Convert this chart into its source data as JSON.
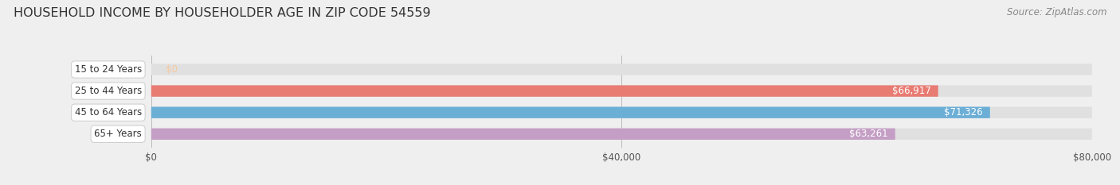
{
  "title": "HOUSEHOLD INCOME BY HOUSEHOLDER AGE IN ZIP CODE 54559",
  "source": "Source: ZipAtlas.com",
  "categories": [
    "15 to 24 Years",
    "25 to 44 Years",
    "45 to 64 Years",
    "65+ Years"
  ],
  "values": [
    0,
    66917,
    71326,
    63261
  ],
  "bar_colors": [
    "#f5c9a0",
    "#e87b72",
    "#6baed6",
    "#c49ec4"
  ],
  "label_colors": [
    "#c8864a",
    "#ffffff",
    "#ffffff",
    "#ffffff"
  ],
  "bg_color": "#efefef",
  "bar_bg_color": "#e0e0e0",
  "xlim": [
    0,
    80000
  ],
  "xticks": [
    0,
    40000,
    80000
  ],
  "xticklabels": [
    "$0",
    "$40,000",
    "$80,000"
  ],
  "title_fontsize": 11.5,
  "source_fontsize": 8.5,
  "label_fontsize": 8.5,
  "tick_fontsize": 8.5,
  "bar_height": 0.52
}
